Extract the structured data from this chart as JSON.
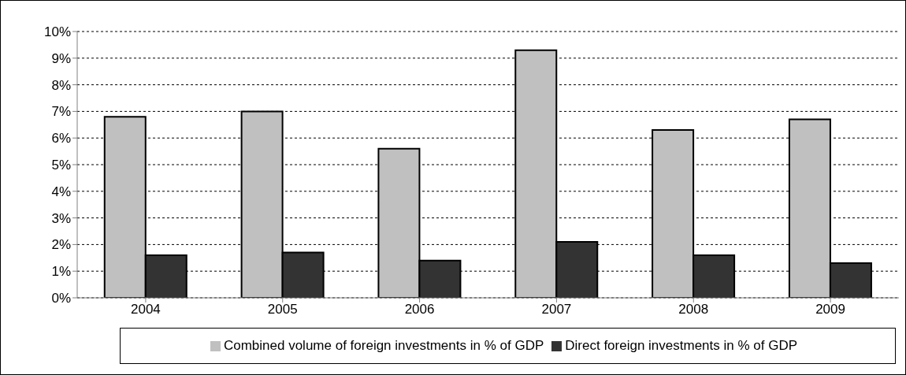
{
  "chart_data": {
    "type": "bar",
    "categories": [
      "2004",
      "2005",
      "2006",
      "2007",
      "2008",
      "2009"
    ],
    "series": [
      {
        "name": "Combined volume of foreign investments in % of GDP",
        "color": "#c0c0c0",
        "values": [
          6.8,
          7.0,
          5.6,
          9.3,
          6.3,
          6.7
        ]
      },
      {
        "name": "Direct foreign investments in % of GDP",
        "color": "#333333",
        "values": [
          1.6,
          1.7,
          1.4,
          2.1,
          1.6,
          1.3
        ]
      }
    ],
    "ylim": [
      0,
      10
    ],
    "yticks": [
      {
        "value": 0,
        "label": "0%"
      },
      {
        "value": 1,
        "label": "1%"
      },
      {
        "value": 2,
        "label": "2%"
      },
      {
        "value": 3,
        "label": "3%"
      },
      {
        "value": 4,
        "label": "4%"
      },
      {
        "value": 5,
        "label": "5%"
      },
      {
        "value": 6,
        "label": "6%"
      },
      {
        "value": 7,
        "label": "7%"
      },
      {
        "value": 8,
        "label": "8%"
      },
      {
        "value": 9,
        "label": "9%"
      },
      {
        "value": 10,
        "label": "10%"
      }
    ],
    "grid": "y",
    "legend": "bottom"
  }
}
